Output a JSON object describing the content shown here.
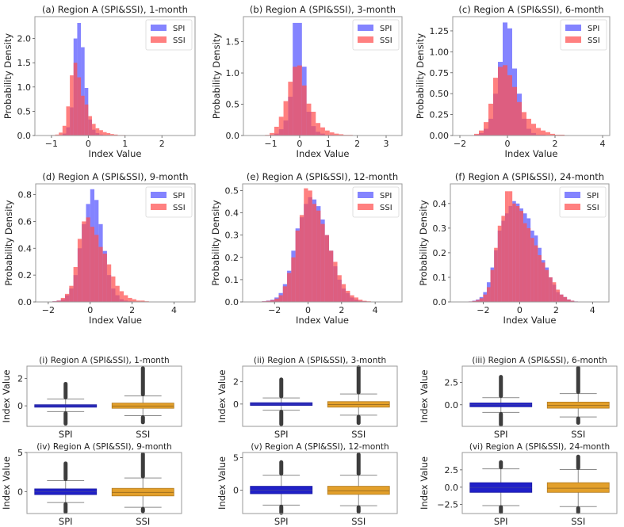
{
  "chart_data": [
    {
      "id": "a",
      "type": "histogram",
      "title": "(a) Region A (SPI&SSI), 1-month",
      "xlabel": "Index Value",
      "ylabel": "Probability Density",
      "xlim": [
        -1.45,
        2.9
      ],
      "ylim": [
        0,
        2.45
      ],
      "xticks": [
        -1,
        0,
        1,
        2
      ],
      "xtick_labels": [
        "−1",
        "0",
        "1",
        "2"
      ],
      "yticks": [
        0,
        0.5,
        1.0,
        1.5,
        2.0
      ],
      "ytick_labels": [
        "0.0",
        "0.5",
        "1.0",
        "1.5",
        "2.0"
      ],
      "legend": [
        "SPI",
        "SSI"
      ],
      "legend_position": "top-right",
      "bin_start": -1.0,
      "bin_width": 0.1,
      "series": [
        {
          "name": "SPI",
          "values": [
            0,
            0,
            0.01,
            0.04,
            0.17,
            0.58,
            2.0,
            2.32,
            1.82,
            0.98,
            0.33,
            0.12,
            0.05,
            0.02,
            0.01,
            0.01,
            0,
            0,
            0,
            0,
            0,
            0,
            0,
            0,
            0,
            0,
            0,
            0,
            0,
            0
          ]
        },
        {
          "name": "SSI",
          "values": [
            0.01,
            0.02,
            0.06,
            0.2,
            0.6,
            1.24,
            1.5,
            1.2,
            0.82,
            0.64,
            0.4,
            0.24,
            0.15,
            0.11,
            0.07,
            0.05,
            0.03,
            0.02,
            0.01,
            0.01,
            0.005,
            0,
            0,
            0,
            0,
            0,
            0,
            0,
            0,
            0
          ]
        }
      ]
    },
    {
      "id": "b",
      "type": "histogram",
      "title": "(b) Region A (SPI&SSI), 3-month",
      "xlabel": "Index Value",
      "ylabel": "Probability Density",
      "xlim": [
        -1.95,
        3.55
      ],
      "ylim": [
        0,
        1.9
      ],
      "xticks": [
        -1,
        0,
        1,
        2,
        3
      ],
      "xtick_labels": [
        "−1",
        "0",
        "1",
        "2",
        "3"
      ],
      "yticks": [
        0,
        0.5,
        1.0,
        1.5
      ],
      "ytick_labels": [
        "0.0",
        "0.5",
        "1.0",
        "1.5"
      ],
      "legend": [
        "SPI",
        "SSI"
      ],
      "legend_position": "top-right",
      "bin_start": -1.2,
      "bin_width": 0.16,
      "series": [
        {
          "name": "SPI",
          "values": [
            0,
            0.01,
            0.03,
            0.1,
            0.24,
            0.62,
            1.8,
            1.8,
            1.1,
            0.38,
            0.15,
            0.06,
            0.03,
            0.01,
            0.01,
            0,
            0,
            0,
            0,
            0,
            0,
            0,
            0,
            0,
            0,
            0,
            0,
            0
          ]
        },
        {
          "name": "SSI",
          "values": [
            0.01,
            0.04,
            0.14,
            0.3,
            0.55,
            0.86,
            1.1,
            1.12,
            0.8,
            0.51,
            0.38,
            0.2,
            0.13,
            0.08,
            0.05,
            0.03,
            0.02,
            0.01,
            0.01,
            0.005,
            0,
            0,
            0,
            0,
            0,
            0,
            0,
            0
          ]
        }
      ]
    },
    {
      "id": "c",
      "type": "histogram",
      "title": "(c) Region A (SPI&SSI), 6-month",
      "xlabel": "Index Value",
      "ylabel": "Probability Density",
      "xlim": [
        -2.3,
        4.3
      ],
      "ylim": [
        0,
        1.42
      ],
      "xticks": [
        -2,
        0,
        2,
        4
      ],
      "xtick_labels": [
        "−2",
        "0",
        "2",
        "4"
      ],
      "yticks": [
        0,
        0.25,
        0.5,
        0.75,
        1.0,
        1.25
      ],
      "ytick_labels": [
        "0.00",
        "0.25",
        "0.50",
        "0.75",
        "1.00",
        "1.25"
      ],
      "legend": [
        "SPI",
        "SSI"
      ],
      "legend_position": "top-right",
      "bin_start": -1.6,
      "bin_width": 0.2,
      "series": [
        {
          "name": "SPI",
          "values": [
            0,
            0.01,
            0.03,
            0.08,
            0.2,
            0.5,
            0.88,
            1.35,
            1.28,
            0.8,
            0.5,
            0.2,
            0.08,
            0.03,
            0.01,
            0.01,
            0,
            0,
            0,
            0,
            0,
            0,
            0,
            0,
            0,
            0,
            0,
            0,
            0,
            0
          ]
        },
        {
          "name": "SSI",
          "values": [
            0.005,
            0.02,
            0.06,
            0.16,
            0.38,
            0.69,
            0.82,
            0.84,
            0.72,
            0.58,
            0.4,
            0.28,
            0.2,
            0.14,
            0.09,
            0.06,
            0.04,
            0.02,
            0.01,
            0.01,
            0.005,
            0,
            0,
            0,
            0,
            0,
            0,
            0,
            0,
            0
          ]
        }
      ]
    },
    {
      "id": "d",
      "type": "histogram",
      "title": "(d) Region A (SPI&SSI), 9-month",
      "xlabel": "Index Value",
      "ylabel": "Probability Density",
      "xlim": [
        -2.6,
        5.0
      ],
      "ylim": [
        0,
        0.88
      ],
      "xticks": [
        -2,
        0,
        2,
        4
      ],
      "xtick_labels": [
        "−2",
        "0",
        "2",
        "4"
      ],
      "yticks": [
        0,
        0.2,
        0.4,
        0.6,
        0.8
      ],
      "ytick_labels": [
        "0.0",
        "0.2",
        "0.4",
        "0.6",
        "0.8"
      ],
      "legend": [
        "SPI",
        "SSI"
      ],
      "legend_position": "top-right",
      "bin_start": -2.0,
      "bin_width": 0.2,
      "series": [
        {
          "name": "SPI",
          "values": [
            0,
            0.005,
            0.01,
            0.02,
            0.05,
            0.1,
            0.2,
            0.4,
            0.58,
            0.73,
            0.84,
            0.76,
            0.58,
            0.38,
            0.2,
            0.1,
            0.05,
            0.02,
            0.01,
            0.005,
            0,
            0,
            0,
            0,
            0,
            0,
            0,
            0,
            0,
            0
          ]
        },
        {
          "name": "SSI",
          "values": [
            0,
            0.005,
            0.01,
            0.03,
            0.06,
            0.12,
            0.26,
            0.47,
            0.6,
            0.63,
            0.56,
            0.5,
            0.41,
            0.36,
            0.28,
            0.19,
            0.12,
            0.08,
            0.05,
            0.03,
            0.02,
            0.01,
            0.01,
            0.005,
            0,
            0,
            0,
            0,
            0,
            0
          ]
        }
      ]
    },
    {
      "id": "e",
      "type": "histogram",
      "title": "(e) Region A (SPI&SSI), 12-month",
      "xlabel": "Index Value",
      "ylabel": "Probability Density",
      "xlim": [
        -3.9,
        5.6
      ],
      "ylim": [
        0,
        0.53
      ],
      "xticks": [
        -2,
        0,
        2,
        4
      ],
      "xtick_labels": [
        "−2",
        "0",
        "2",
        "4"
      ],
      "yticks": [
        0,
        0.1,
        0.2,
        0.3,
        0.4,
        0.5
      ],
      "ytick_labels": [
        "0.0",
        "0.1",
        "0.2",
        "0.3",
        "0.4",
        "0.5"
      ],
      "legend": [
        "SPI",
        "SSI"
      ],
      "legend_position": "top-right",
      "bin_start": -3.0,
      "bin_width": 0.25,
      "series": [
        {
          "name": "SPI",
          "values": [
            0,
            0.003,
            0.006,
            0.01,
            0.02,
            0.04,
            0.08,
            0.14,
            0.23,
            0.33,
            0.38,
            0.44,
            0.47,
            0.46,
            0.43,
            0.37,
            0.3,
            0.23,
            0.16,
            0.1,
            0.06,
            0.04,
            0.02,
            0.01,
            0.005,
            0.003,
            0,
            0,
            0,
            0,
            0,
            0,
            0,
            0,
            0,
            0
          ]
        },
        {
          "name": "SSI",
          "values": [
            0,
            0.003,
            0.005,
            0.008,
            0.015,
            0.03,
            0.07,
            0.13,
            0.2,
            0.32,
            0.39,
            0.51,
            0.5,
            0.44,
            0.41,
            0.35,
            0.3,
            0.23,
            0.18,
            0.12,
            0.08,
            0.05,
            0.03,
            0.02,
            0.01,
            0.005,
            0.003,
            0,
            0,
            0,
            0,
            0,
            0,
            0,
            0,
            0
          ]
        }
      ]
    },
    {
      "id": "f",
      "type": "histogram",
      "title": "(f) Region A (SPI&SSI), 24-month",
      "xlabel": "Index Value",
      "ylabel": "Probability Density",
      "xlim": [
        -3.8,
        4.9
      ],
      "ylim": [
        0,
        0.48
      ],
      "xticks": [
        -2,
        0,
        2,
        4
      ],
      "xtick_labels": [
        "−2",
        "0",
        "2",
        "4"
      ],
      "yticks": [
        0,
        0.1,
        0.2,
        0.3,
        0.4
      ],
      "ytick_labels": [
        "0.0",
        "0.1",
        "0.2",
        "0.3",
        "0.4"
      ],
      "legend": [
        "SPI",
        "SSI"
      ],
      "legend_position": "top-right",
      "bin_start": -3.0,
      "bin_width": 0.2,
      "series": [
        {
          "name": "SPI",
          "values": [
            0,
            0.002,
            0.005,
            0.01,
            0.02,
            0.04,
            0.08,
            0.14,
            0.21,
            0.29,
            0.33,
            0.36,
            0.39,
            0.41,
            0.4,
            0.38,
            0.36,
            0.34,
            0.29,
            0.27,
            0.22,
            0.17,
            0.14,
            0.1,
            0.07,
            0.04,
            0.03,
            0.02,
            0.01,
            0.005,
            0.002,
            0,
            0,
            0,
            0,
            0,
            0,
            0,
            0,
            0,
            0,
            0,
            0
          ]
        },
        {
          "name": "SSI",
          "values": [
            0,
            0.002,
            0.004,
            0.008,
            0.015,
            0.03,
            0.06,
            0.13,
            0.22,
            0.31,
            0.35,
            0.45,
            0.45,
            0.4,
            0.39,
            0.37,
            0.32,
            0.3,
            0.26,
            0.23,
            0.19,
            0.16,
            0.13,
            0.1,
            0.08,
            0.05,
            0.03,
            0.02,
            0.01,
            0.005,
            0.002,
            0,
            0,
            0,
            0,
            0,
            0,
            0,
            0,
            0,
            0,
            0,
            0
          ]
        }
      ]
    },
    {
      "id": "i",
      "type": "box",
      "title": "(i) Region A (SPI&SSI), 1-month",
      "ylabel": "Index Value",
      "ylim": [
        -1.5,
        2.9
      ],
      "yticks": [
        0,
        2
      ],
      "ytick_labels": [
        "0",
        "2"
      ],
      "categories": [
        "SPI",
        "SSI"
      ],
      "boxes": [
        {
          "name": "SPI",
          "q1": -0.1,
          "median": 0.0,
          "q3": 0.08,
          "whisker_low": -0.42,
          "whisker_high": 0.5,
          "outlier_low": -1.3,
          "outlier_high": 1.6
        },
        {
          "name": "SSI",
          "q1": -0.18,
          "median": -0.02,
          "q3": 0.2,
          "whisker_low": -0.72,
          "whisker_high": 0.72,
          "outlier_low": -1.2,
          "outlier_high": 2.75
        }
      ]
    },
    {
      "id": "ii",
      "type": "box",
      "title": "(ii) Region A (SPI&SSI), 3-month",
      "ylabel": "Index Value",
      "ylim": [
        -2.0,
        3.4
      ],
      "yticks": [
        0,
        2
      ],
      "ytick_labels": [
        "0",
        "2"
      ],
      "categories": [
        "SPI",
        "SSI"
      ],
      "boxes": [
        {
          "name": "SPI",
          "q1": -0.12,
          "median": 0.0,
          "q3": 0.12,
          "whisker_low": -0.55,
          "whisker_high": 0.55,
          "outlier_low": -1.8,
          "outlier_high": 2.2
        },
        {
          "name": "SSI",
          "q1": -0.28,
          "median": -0.05,
          "q3": 0.22,
          "whisker_low": -1.0,
          "whisker_high": 0.9,
          "outlier_low": -1.7,
          "outlier_high": 3.3
        }
      ]
    },
    {
      "id": "iii",
      "type": "box",
      "title": "(iii) Region A (SPI&SSI), 6-month",
      "ylabel": "Index Value",
      "ylim": [
        -2.4,
        4.3
      ],
      "yticks": [
        0,
        2.5
      ],
      "ytick_labels": [
        "0.0",
        "2.5"
      ],
      "categories": [
        "SPI",
        "SSI"
      ],
      "boxes": [
        {
          "name": "SPI",
          "q1": -0.22,
          "median": 0.0,
          "q3": 0.2,
          "whisker_low": -0.85,
          "whisker_high": 0.8,
          "outlier_low": -2.2,
          "outlier_high": 3.1
        },
        {
          "name": "SSI",
          "q1": -0.38,
          "median": -0.08,
          "q3": 0.3,
          "whisker_low": -1.35,
          "whisker_high": 1.25,
          "outlier_low": -2.0,
          "outlier_high": 4.1
        }
      ]
    },
    {
      "id": "iv",
      "type": "box",
      "title": "(iv) Region A (SPI&SSI), 9-month",
      "ylabel": "Index Value",
      "ylim": [
        -2.8,
        5.0
      ],
      "yticks": [
        0,
        5
      ],
      "ytick_labels": [
        "0",
        "5"
      ],
      "categories": [
        "SPI",
        "SSI"
      ],
      "boxes": [
        {
          "name": "SPI",
          "q1": -0.38,
          "median": 0.0,
          "q3": 0.35,
          "whisker_low": -1.4,
          "whisker_high": 1.4,
          "outlier_low": -2.6,
          "outlier_high": 3.6
        },
        {
          "name": "SSI",
          "q1": -0.55,
          "median": -0.1,
          "q3": 0.42,
          "whisker_low": -2.0,
          "whisker_high": 1.75,
          "outlier_low": -2.5,
          "outlier_high": 4.8
        }
      ]
    },
    {
      "id": "v",
      "type": "box",
      "title": "(v) Region A (SPI&SSI), 12-month",
      "ylabel": "Index Value",
      "ylim": [
        -3.6,
        5.8
      ],
      "yticks": [
        0,
        5
      ],
      "ytick_labels": [
        "0",
        "5"
      ],
      "categories": [
        "SPI",
        "SSI"
      ],
      "boxes": [
        {
          "name": "SPI",
          "q1": -0.55,
          "median": 0.0,
          "q3": 0.6,
          "whisker_low": -2.3,
          "whisker_high": 2.3,
          "outlier_low": -3.5,
          "outlier_high": 4.3
        },
        {
          "name": "SSI",
          "q1": -0.65,
          "median": -0.1,
          "q3": 0.6,
          "whisker_low": -2.4,
          "whisker_high": 2.3,
          "outlier_low": -3.3,
          "outlier_high": 5.5
        }
      ]
    },
    {
      "id": "vi",
      "type": "box",
      "title": "(vi) Region A (SPI&SSI), 24-month",
      "ylabel": "Index Value",
      "ylim": [
        -3.8,
        5.0
      ],
      "yticks": [
        -2.5,
        0,
        2.5
      ],
      "ytick_labels": [
        "−2.5",
        "0.0",
        "2.5"
      ],
      "categories": [
        "SPI",
        "SSI"
      ],
      "boxes": [
        {
          "name": "SPI",
          "q1": -0.75,
          "median": -0.05,
          "q3": 0.65,
          "whisker_low": -2.65,
          "whisker_high": 2.65,
          "outlier_low": -3.6,
          "outlier_high": 3.6
        },
        {
          "name": "SSI",
          "q1": -0.75,
          "median": -0.15,
          "q3": 0.65,
          "whisker_low": -2.8,
          "whisker_high": 2.55,
          "outlier_low": -3.6,
          "outlier_high": 4.4
        }
      ]
    }
  ],
  "colors": {
    "spi_hist": "#5555ff",
    "ssi_hist": "#ff4f4f",
    "spi_box": "#2020c8",
    "ssi_box": "#e3a02b",
    "axis": "#9a9a9a",
    "whisker": "#8a8a8a",
    "outlier": "#3d3d3d"
  }
}
